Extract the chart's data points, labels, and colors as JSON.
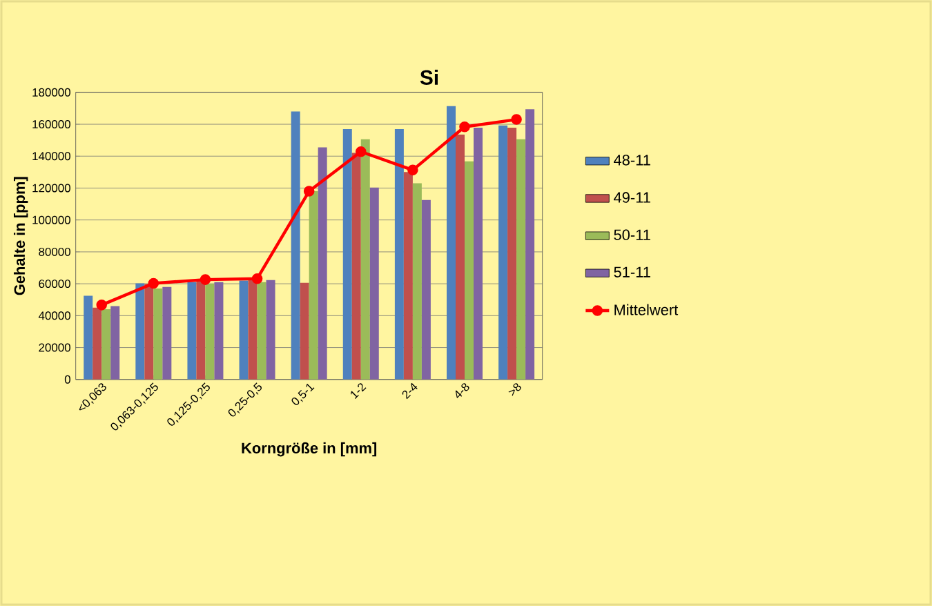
{
  "chart_data": {
    "type": "bar",
    "title": "Si",
    "xlabel": "Korngröße in [mm]",
    "ylabel": "Gehalte in [ppm]",
    "categories": [
      "<0,063",
      "0,063-0,125",
      "0,125-0,25",
      "0,25-0,5",
      "0,5-1",
      "1-2",
      "2-4",
      "4-8",
      ">8"
    ],
    "series": [
      {
        "name": "48-11",
        "color": "#4f81bd",
        "values": [
          52500,
          60300,
          61000,
          62000,
          168000,
          157000,
          157000,
          171400,
          159300
        ]
      },
      {
        "name": "49-11",
        "color": "#c0504d",
        "values": [
          45000,
          60000,
          62000,
          62600,
          60600,
          142000,
          130000,
          153500,
          157800
        ]
      },
      {
        "name": "50-11",
        "color": "#9bbb59",
        "values": [
          44000,
          57000,
          60000,
          61000,
          118000,
          150600,
          123000,
          136800,
          150600
        ]
      },
      {
        "name": "51-11",
        "color": "#8064a2",
        "values": [
          46000,
          58000,
          61000,
          62300,
          145500,
          120300,
          112500,
          157800,
          169400
        ]
      },
      {
        "name": "Mittelwert",
        "type": "line",
        "color": "#ff0000",
        "values": [
          46700,
          60300,
          62600,
          63200,
          118000,
          142800,
          131300,
          158400,
          163000
        ]
      }
    ],
    "ylim": [
      0,
      180000
    ],
    "yticks": [
      0,
      20000,
      40000,
      60000,
      80000,
      100000,
      120000,
      140000,
      160000,
      180000
    ],
    "grid": "y",
    "legend": "right",
    "marker": "circle"
  }
}
